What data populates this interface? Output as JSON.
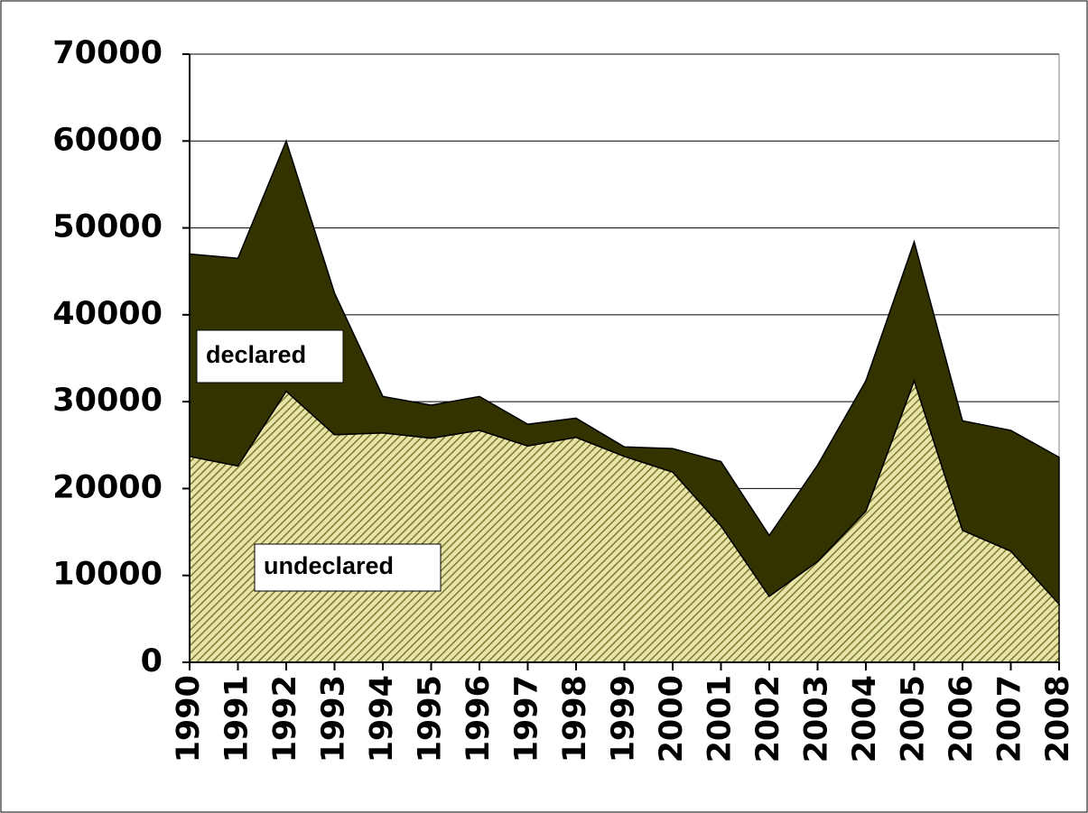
{
  "chart_data": {
    "type": "area",
    "stacked": true,
    "categories": [
      "1990",
      "1991",
      "1992",
      "1993",
      "1994",
      "1995",
      "1996",
      "1997",
      "1998",
      "1999",
      "2000",
      "2001",
      "2002",
      "2003",
      "2004",
      "2005",
      "2006",
      "2007",
      "2008"
    ],
    "series": [
      {
        "name": "undeclared",
        "color": "#c8c47a",
        "hatch": true,
        "values": [
          23700,
          22600,
          31200,
          26200,
          26400,
          25800,
          26700,
          24900,
          25900,
          23700,
          21900,
          15700,
          7600,
          11600,
          17400,
          32400,
          15200,
          12800,
          6700
        ]
      },
      {
        "name": "declared",
        "color": "#333300",
        "hatch": false,
        "values": [
          23300,
          23900,
          28800,
          16300,
          4200,
          3800,
          3900,
          2500,
          2200,
          1100,
          2700,
          7400,
          7000,
          11100,
          15000,
          16000,
          12600,
          13900,
          16900
        ]
      }
    ],
    "ylim": [
      0,
      70000
    ],
    "yticks": [
      0,
      10000,
      20000,
      30000,
      40000,
      50000,
      60000,
      70000
    ],
    "grid": true
  }
}
